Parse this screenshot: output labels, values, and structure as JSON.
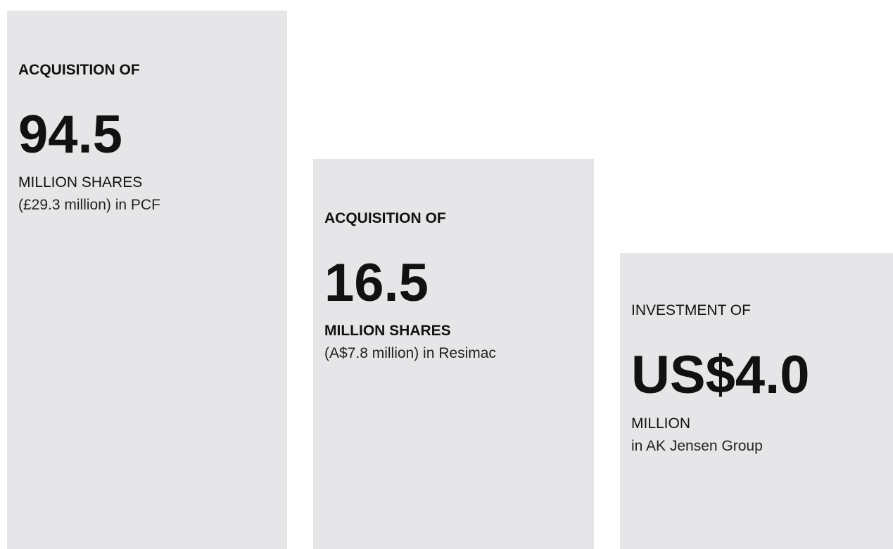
{
  "cards": [
    {
      "label": "ACQUISITION OF",
      "figure": "94.5",
      "unit": "MILLION SHARES",
      "detail": "(£29.3 million) in PCF"
    },
    {
      "label": "ACQUISITION OF",
      "figure": "16.5",
      "unit": "MILLION SHARES",
      "detail": "(A$7.8 million) in Resimac"
    },
    {
      "label": "INVESTMENT OF",
      "figure": "US$4.0",
      "unit": "MILLION",
      "detail": "in AK Jensen Group"
    }
  ]
}
